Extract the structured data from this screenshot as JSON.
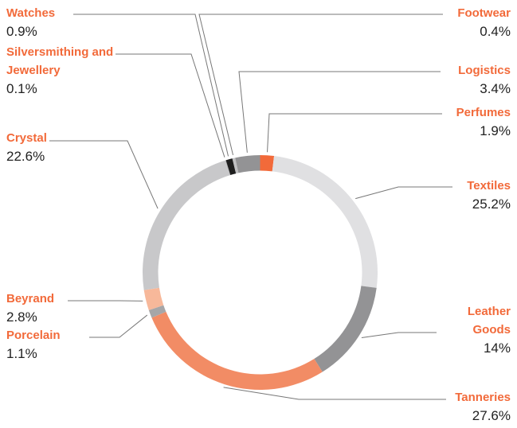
{
  "chart_data": {
    "type": "donut",
    "categories": [
      "Perfumes",
      "Textiles",
      "Leather Goods",
      "Tanneries",
      "Porcelain",
      "Beyrand",
      "Crystal",
      "Silversmithing and Jewellery",
      "Watches",
      "Footwear",
      "Logistics"
    ],
    "values": [
      1.9,
      25.2,
      14,
      27.6,
      1.1,
      2.8,
      22.6,
      0.1,
      0.9,
      0.4,
      3.4
    ],
    "value_labels": [
      "1.9%",
      "25.2%",
      "14%",
      "27.6%",
      "1.1%",
      "2.8%",
      "22.6%",
      "0.1%",
      "0.9%",
      "0.4%",
      "3.4%"
    ],
    "colors": [
      "#f26a3a",
      "#e0e0e2",
      "#939395",
      "#f28c65",
      "#a6a6a8",
      "#f7b89a",
      "#c8c8ca",
      "#b0b0b2",
      "#1e1e1e",
      "#c0c0c2",
      "#939395"
    ]
  }
}
